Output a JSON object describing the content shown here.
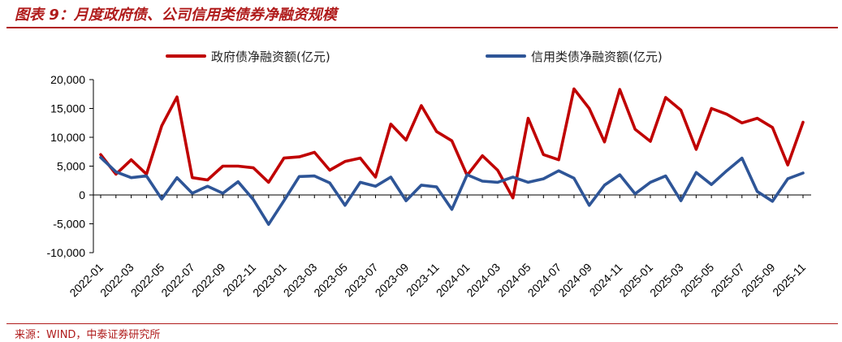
{
  "figure_title": "图表 9：月度政府债、公司信用类债券净融资规模",
  "source": "来源：WIND，中泰证券研究所",
  "colors": {
    "government": "#c00000",
    "credit": "#2e5597",
    "accent": "#b01c1c"
  },
  "chart_data": {
    "type": "line",
    "legend_position": "top",
    "grid": false,
    "ylim": [
      -10000,
      20000
    ],
    "yticks": [
      "20,000",
      "15,000",
      "10,000",
      "5,000",
      "0",
      "-5,000",
      "-10,000"
    ],
    "ytick_values": [
      20000,
      15000,
      10000,
      5000,
      0,
      -5000,
      -10000
    ],
    "xtick_labels": [
      "2022-01",
      "2022-03",
      "2022-05",
      "2022-07",
      "2022-09",
      "2022-11",
      "2023-01",
      "2023-03",
      "2023-05",
      "2023-07",
      "2023-09",
      "2023-11",
      "2024-01",
      "2024-03",
      "2024-05",
      "2024-07",
      "2024-09",
      "2024-11",
      "2025-01",
      "2025-03",
      "2025-05",
      "2025-07",
      "2025-09",
      "2025-11"
    ],
    "x": [
      "2022-01",
      "2022-02",
      "2022-03",
      "2022-04",
      "2022-05",
      "2022-06",
      "2022-07",
      "2022-08",
      "2022-09",
      "2022-10",
      "2022-11",
      "2022-12",
      "2023-01",
      "2023-02",
      "2023-03",
      "2023-04",
      "2023-05",
      "2023-06",
      "2023-07",
      "2023-08",
      "2023-09",
      "2023-10",
      "2023-11",
      "2023-12",
      "2024-01",
      "2024-02",
      "2024-03",
      "2024-04",
      "2024-05",
      "2024-06",
      "2024-07",
      "2024-08",
      "2024-09",
      "2024-10",
      "2024-11",
      "2024-12",
      "2025-01",
      "2025-02",
      "2025-03",
      "2025-04",
      "2025-05",
      "2025-06",
      "2025-07",
      "2025-08",
      "2025-09",
      "2025-10",
      "2025-11"
    ],
    "series": [
      {
        "name": "政府债净融资额(亿元)",
        "values": [
          7000,
          3600,
          6100,
          3600,
          12000,
          17000,
          3000,
          2600,
          5000,
          5000,
          4700,
          2200,
          6400,
          6600,
          7400,
          4300,
          5800,
          6400,
          3100,
          12300,
          9500,
          15500,
          11000,
          9400,
          3400,
          6800,
          4300,
          -500,
          13300,
          7000,
          6100,
          18400,
          15000,
          9200,
          18300,
          11400,
          9300,
          16900,
          14700,
          7900,
          15000,
          14000,
          12500,
          13300,
          11700,
          5200,
          12600
        ]
      },
      {
        "name": "信用类债净融资额(亿元)",
        "values": [
          6500,
          4000,
          3000,
          3300,
          -700,
          3000,
          300,
          1500,
          300,
          2300,
          -800,
          -5100,
          -1000,
          3200,
          3300,
          2100,
          -1800,
          2200,
          1500,
          3100,
          -1000,
          1700,
          1400,
          -2500,
          3500,
          2400,
          2200,
          3100,
          2200,
          2800,
          4200,
          2900,
          -1800,
          1700,
          3500,
          200,
          2200,
          3300,
          -1000,
          3900,
          1800,
          4200,
          6400,
          600,
          -1100,
          2800,
          3800
        ]
      }
    ]
  }
}
